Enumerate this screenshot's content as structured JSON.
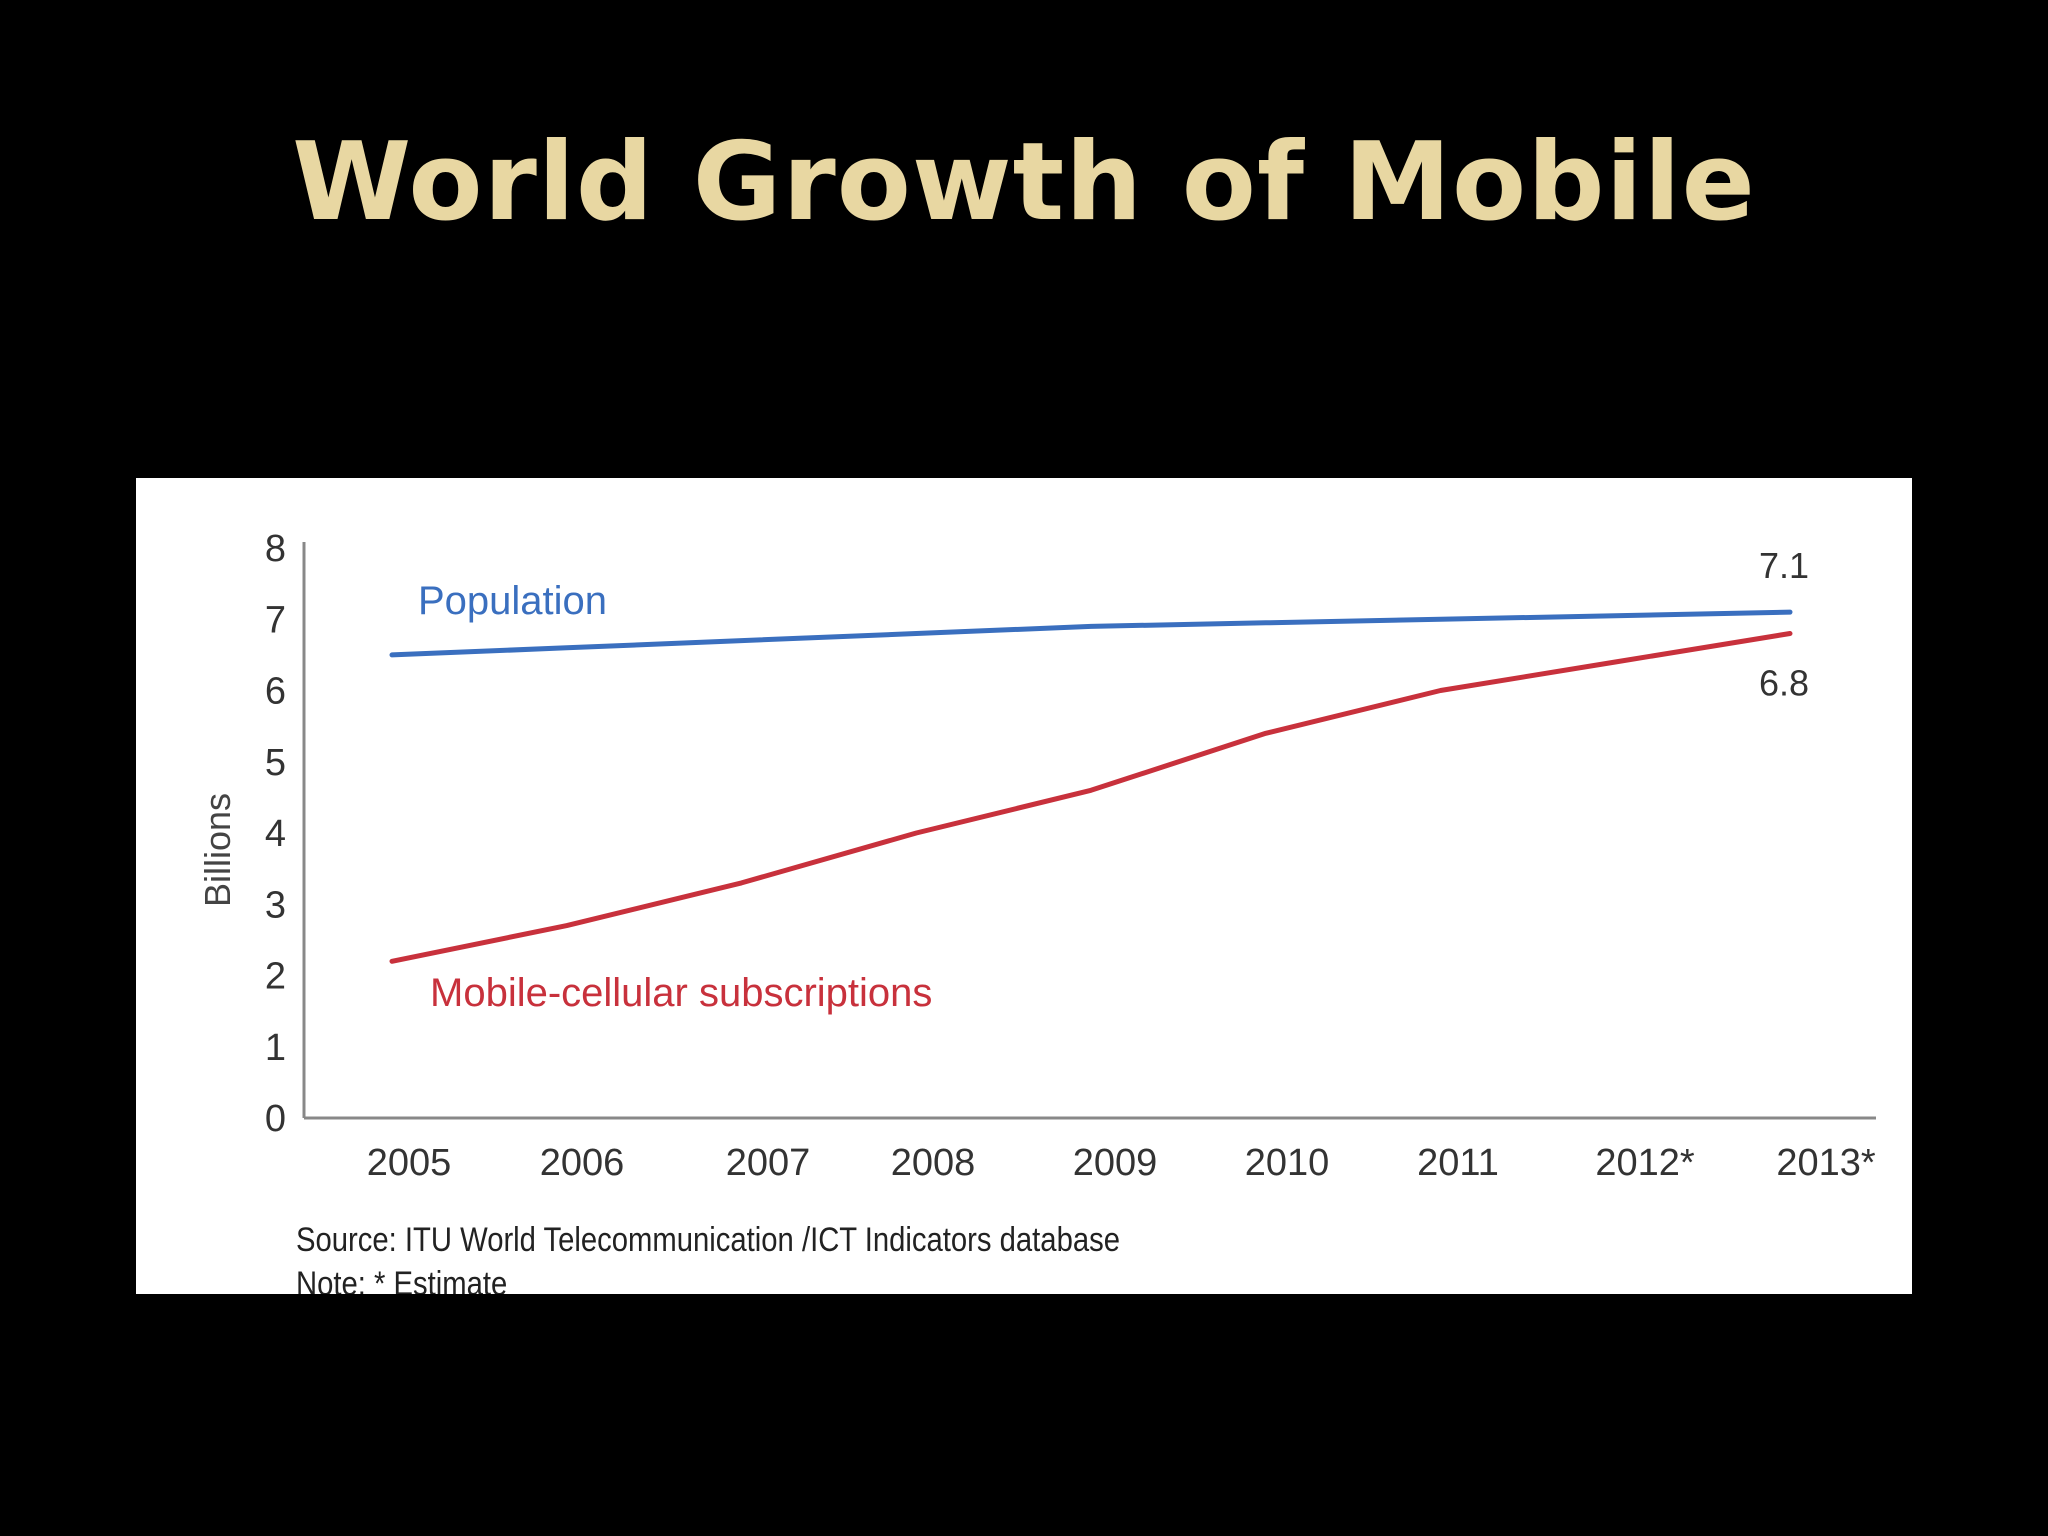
{
  "slide": {
    "title": "World Growth of Mobile"
  },
  "colors": {
    "background": "#000000",
    "title": "#e8d7a2",
    "population_line": "#3a6fbf",
    "subscriptions_line": "#c8313c"
  },
  "chart_data": {
    "type": "line",
    "title": "",
    "ylabel": "Billions",
    "xlabel": "",
    "ylim": [
      0,
      8
    ],
    "yticks": [
      0,
      1,
      2,
      3,
      4,
      5,
      6,
      7,
      8
    ],
    "categories": [
      "2005",
      "2006",
      "2007",
      "2008",
      "2009",
      "2010",
      "2011",
      "2012*",
      "2013*"
    ],
    "grid": false,
    "series": [
      {
        "name": "Population",
        "values": [
          6.5,
          6.6,
          6.7,
          6.8,
          6.9,
          6.95,
          7.0,
          7.05,
          7.1
        ]
      },
      {
        "name": "Mobile-cellular subscriptions",
        "values": [
          2.2,
          2.7,
          3.3,
          4.0,
          4.6,
          5.4,
          6.0,
          6.4,
          6.8
        ]
      }
    ],
    "annotations": [
      {
        "text": "7.1",
        "series": 0,
        "index": 8
      },
      {
        "text": "6.8",
        "series": 1,
        "index": 8
      }
    ]
  },
  "source": {
    "line1": "Source:  ITU World Telecommunication /ICT Indicators database",
    "line2": "Note: * Estimate"
  }
}
